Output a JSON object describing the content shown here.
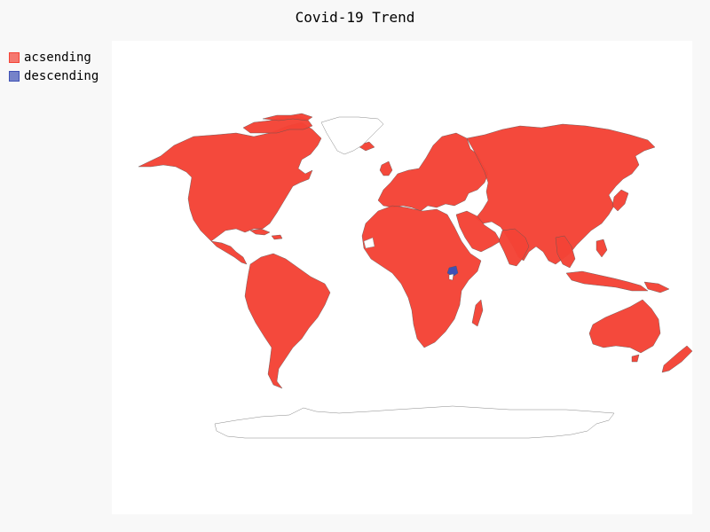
{
  "title": "Covid-19 Trend",
  "legend": {
    "items": [
      {
        "label": "acsending",
        "color": "#f44336"
      },
      {
        "label": "descending",
        "color": "#3f51b5"
      }
    ]
  },
  "map_data": {
    "type": "choropleth",
    "projection": "world",
    "categories": [
      "acsending",
      "descending"
    ],
    "colors": {
      "acsending": "#f44336",
      "descending": "#3f51b5",
      "no_data": "#ffffff"
    },
    "highlighted_regions": [
      {
        "region": "Uganda",
        "category": "descending"
      }
    ],
    "unfilled_regions": [
      "Greenland",
      "Antarctica",
      "Western Sahara"
    ]
  }
}
